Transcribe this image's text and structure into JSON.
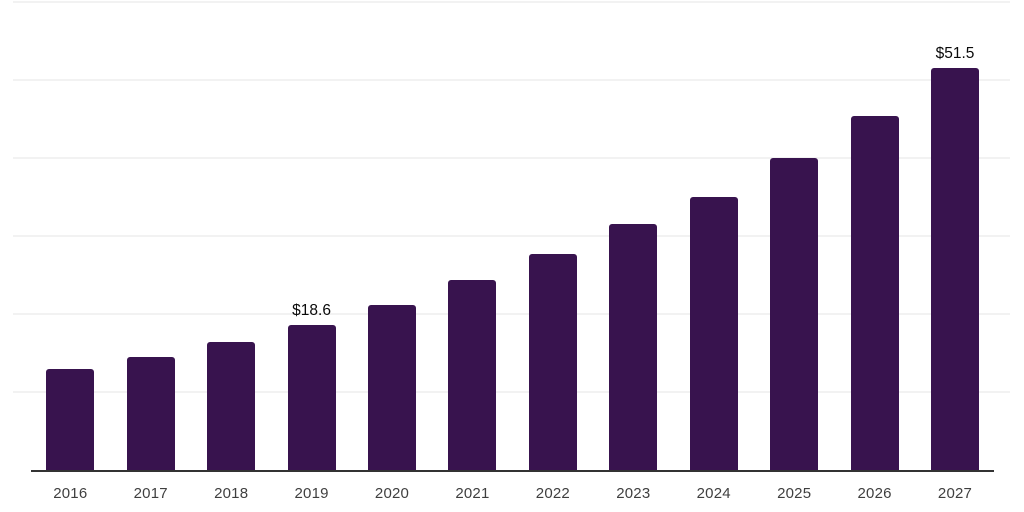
{
  "chart_data": {
    "type": "bar",
    "title": "",
    "xlabel": "",
    "ylabel": "",
    "categories": [
      "2016",
      "2017",
      "2018",
      "2019",
      "2020",
      "2021",
      "2022",
      "2023",
      "2024",
      "2025",
      "2026",
      "2027"
    ],
    "values": [
      13.0,
      14.5,
      16.4,
      18.6,
      21.2,
      24.4,
      27.7,
      31.5,
      35.0,
      40.0,
      45.4,
      51.5
    ],
    "data_labels": {
      "2019": "$18.6",
      "2027": "$51.5"
    },
    "value_prefix": "$",
    "ylim": [
      0,
      60
    ],
    "gridline_step": 10,
    "grid": true,
    "legend": "none",
    "y_axis_labels_visible": false,
    "colors": {
      "bar": "#38134e",
      "gridline": "#f2f2f2",
      "axis_line": "#333333",
      "tick_label": "#3f3f3f",
      "data_label": "#0a0a0a",
      "background": "#ffffff"
    }
  }
}
